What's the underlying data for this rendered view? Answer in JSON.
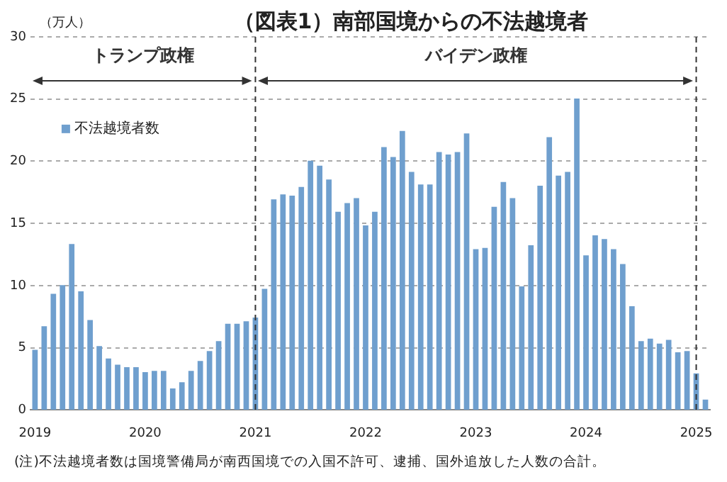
{
  "chart_data": {
    "type": "bar",
    "title": "（図表1）南部国境からの不法越境者",
    "ylabel": "（万人）",
    "annotations": [
      "トランプ政権",
      "バイデン政権",
      "(注)不法越境者数は国境警備局が南西国境での入国不許可、逮捕、国外追放した人数の合計。"
    ],
    "x": [
      "2019-01",
      "2019-02",
      "2019-03",
      "2019-04",
      "2019-05",
      "2019-06",
      "2019-07",
      "2019-08",
      "2019-09",
      "2019-10",
      "2019-11",
      "2019-12",
      "2020-01",
      "2020-02",
      "2020-03",
      "2020-04",
      "2020-05",
      "2020-06",
      "2020-07",
      "2020-08",
      "2020-09",
      "2020-10",
      "2020-11",
      "2020-12",
      "2021-01",
      "2021-02",
      "2021-03",
      "2021-04",
      "2021-05",
      "2021-06",
      "2021-07",
      "2021-08",
      "2021-09",
      "2021-10",
      "2021-11",
      "2021-12",
      "2022-01",
      "2022-02",
      "2022-03",
      "2022-04",
      "2022-05",
      "2022-06",
      "2022-07",
      "2022-08",
      "2022-09",
      "2022-10",
      "2022-11",
      "2022-12",
      "2023-01",
      "2023-02",
      "2023-03",
      "2023-04",
      "2023-05",
      "2023-06",
      "2023-07",
      "2023-08",
      "2023-09",
      "2023-10",
      "2023-11",
      "2023-12",
      "2024-01",
      "2024-02",
      "2024-03",
      "2024-04",
      "2024-05",
      "2024-06",
      "2024-07",
      "2024-08",
      "2024-09",
      "2024-10",
      "2024-11",
      "2024-12",
      "2025-01",
      "2025-02"
    ],
    "series": [
      {
        "name": "不法越境者数",
        "color": "#6f9fce",
        "values": [
          4.8,
          6.7,
          9.3,
          10.0,
          13.3,
          9.5,
          7.2,
          5.1,
          4.1,
          3.6,
          3.4,
          3.4,
          3.0,
          3.1,
          3.1,
          1.7,
          2.2,
          3.1,
          3.9,
          4.7,
          5.5,
          6.9,
          6.9,
          7.1,
          7.4,
          9.7,
          16.9,
          17.3,
          17.2,
          17.9,
          20.0,
          19.6,
          18.5,
          15.9,
          16.6,
          17.0,
          14.8,
          15.9,
          21.1,
          20.3,
          22.4,
          19.1,
          18.1,
          18.1,
          20.7,
          20.5,
          20.7,
          22.2,
          12.9,
          13.0,
          16.3,
          18.3,
          17.0,
          9.9,
          13.2,
          18.0,
          21.9,
          18.8,
          19.1,
          25.0,
          12.4,
          14.0,
          13.7,
          12.9,
          11.7,
          8.3,
          5.5,
          5.7,
          5.3,
          5.6,
          4.6,
          4.7,
          2.9,
          0.8
        ]
      }
    ],
    "xlim": [
      "2018-12-16",
      "2025-02-16"
    ],
    "xticks": [
      "2019",
      "2020",
      "2021",
      "2022",
      "2023",
      "2024",
      "2025"
    ],
    "ylim": [
      0,
      30
    ],
    "yticks": [
      0,
      5,
      10,
      15,
      20,
      25,
      30
    ],
    "grid": "y",
    "legend": "top left",
    "ref_lines": [
      {
        "axis": "x",
        "value": "2021",
        "color": "#333333",
        "line_style": "dashed"
      },
      {
        "axis": "x",
        "value": "2025",
        "color": "#333333",
        "line_style": "dashed"
      }
    ]
  }
}
